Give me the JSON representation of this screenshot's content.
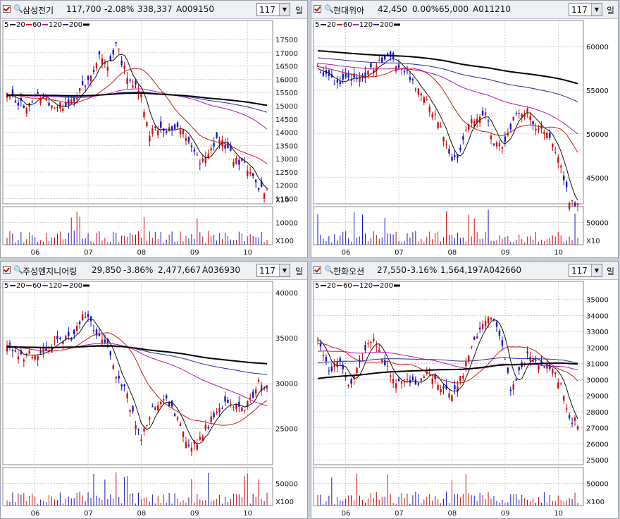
{
  "colors": {
    "up": "#cc1010",
    "down": "#1414c8",
    "ma5": "#111111",
    "ma20": "#d01818",
    "ma60": "#b21ab0",
    "ma120": "#2a2aa0",
    "ma200": "#000000",
    "grid": "#b0b0b0"
  },
  "interval_label": "일",
  "chart_data": [
    {
      "type": "candlestick",
      "name": "삼성전기",
      "price": "117,700",
      "change": "-2.08%",
      "volume": "338,337",
      "code": "A009150",
      "period": "117",
      "legend": [
        "5",
        "20",
        "60",
        "120",
        "200"
      ],
      "price_ticks": [
        "17500",
        "17000",
        "16500",
        "16000",
        "15500",
        "15000",
        "14500",
        "14000",
        "13500",
        "13000",
        "12500",
        "12000",
        "11500"
      ],
      "price_scale_label": "X10",
      "volume_ticks": [
        "10000"
      ],
      "volume_scale_label": "X100",
      "ylim": [
        11300,
        17900
      ],
      "vmax": 15000,
      "months": [
        "06",
        "07",
        "08",
        "09",
        "10"
      ],
      "anchors": [
        [
          0,
          15400
        ],
        [
          6,
          15000
        ],
        [
          12,
          15400
        ],
        [
          18,
          14900
        ],
        [
          24,
          15300
        ],
        [
          30,
          16000
        ],
        [
          33,
          16900
        ],
        [
          36,
          16500
        ],
        [
          39,
          17300
        ],
        [
          42,
          16400
        ],
        [
          45,
          15800
        ],
        [
          48,
          15400
        ],
        [
          51,
          14000
        ],
        [
          54,
          14200
        ],
        [
          57,
          14100
        ],
        [
          60,
          14100
        ],
        [
          63,
          14000
        ],
        [
          66,
          13500
        ],
        [
          69,
          12800
        ],
        [
          72,
          13100
        ],
        [
          75,
          13800
        ],
        [
          78,
          13500
        ],
        [
          81,
          13000
        ],
        [
          84,
          12900
        ],
        [
          87,
          12400
        ],
        [
          90,
          11900
        ],
        [
          93,
          11800
        ]
      ]
    },
    {
      "type": "candlestick",
      "name": "현대위아",
      "price": "42,450",
      "change": "0.00%",
      "volume": "65,000",
      "code": "A011210",
      "period": "117",
      "legend": [
        "5",
        "20",
        "60",
        "120",
        "200"
      ],
      "price_ticks": [
        "60000",
        "55000",
        "50000",
        "45000"
      ],
      "price_scale_label": "",
      "volume_ticks": [
        "50000"
      ],
      "volume_scale_label": "X10",
      "ylim": [
        42000,
        62000
      ],
      "vmax": 700,
      "months": [
        "06",
        "07",
        "08",
        "09",
        "10"
      ],
      "anchors": [
        [
          0,
          57500
        ],
        [
          6,
          56000
        ],
        [
          12,
          56000
        ],
        [
          18,
          57000
        ],
        [
          24,
          58500
        ],
        [
          27,
          58200
        ],
        [
          30,
          57500
        ],
        [
          33,
          56500
        ],
        [
          36,
          55000
        ],
        [
          39,
          54000
        ],
        [
          42,
          52000
        ],
        [
          45,
          50000
        ],
        [
          48,
          46500
        ],
        [
          51,
          48000
        ],
        [
          54,
          51000
        ],
        [
          57,
          52000
        ],
        [
          60,
          52000
        ],
        [
          63,
          49000
        ],
        [
          66,
          48500
        ],
        [
          69,
          51000
        ],
        [
          72,
          52500
        ],
        [
          75,
          52500
        ],
        [
          78,
          51000
        ],
        [
          81,
          50500
        ],
        [
          84,
          48500
        ],
        [
          87,
          46500
        ],
        [
          90,
          42500
        ]
      ]
    },
    {
      "type": "candlestick",
      "name": "주성엔지니어링",
      "price": "29,850",
      "change": "-3.86%",
      "volume": "2,477,667",
      "code": "A036930",
      "period": "117",
      "legend": [
        "5",
        "20",
        "60",
        "120",
        "200"
      ],
      "price_ticks": [
        "40000",
        "35000",
        "30000",
        "25000"
      ],
      "price_scale_label": "",
      "volume_ticks": [
        "50000"
      ],
      "volume_scale_label": "X100",
      "ylim": [
        21000,
        40300
      ],
      "vmax": 90000,
      "months": [
        "06",
        "07",
        "08",
        "09",
        "10"
      ],
      "anchors": [
        [
          0,
          34000
        ],
        [
          6,
          33000
        ],
        [
          12,
          33500
        ],
        [
          18,
          34500
        ],
        [
          24,
          35000
        ],
        [
          27,
          38000
        ],
        [
          30,
          36500
        ],
        [
          33,
          35000
        ],
        [
          36,
          34000
        ],
        [
          39,
          31000
        ],
        [
          42,
          29500
        ],
        [
          45,
          26500
        ],
        [
          48,
          24000
        ],
        [
          51,
          26500
        ],
        [
          54,
          28000
        ],
        [
          57,
          28500
        ],
        [
          60,
          26500
        ],
        [
          63,
          24500
        ],
        [
          66,
          22800
        ],
        [
          69,
          24000
        ],
        [
          72,
          25500
        ],
        [
          75,
          27000
        ],
        [
          78,
          27500
        ],
        [
          81,
          27500
        ],
        [
          84,
          27000
        ],
        [
          87,
          28000
        ],
        [
          90,
          30000
        ]
      ]
    },
    {
      "type": "candlestick",
      "name": "한화오션",
      "price": "27,550",
      "change": "-3.16%",
      "volume": "1,564,197",
      "code": "A042660",
      "period": "117",
      "legend": [
        "5",
        "20",
        "60",
        "120",
        "200"
      ],
      "price_ticks": [
        "35000",
        "34000",
        "33000",
        "32000",
        "31000",
        "30000",
        "29000",
        "28000",
        "27000",
        "26000",
        "25000"
      ],
      "price_scale_label": "",
      "volume_ticks": [
        "50000"
      ],
      "volume_scale_label": "X100",
      "ylim": [
        24700,
        35600
      ],
      "vmax": 60000,
      "months": [
        "06",
        "07",
        "08",
        "09",
        "10"
      ],
      "anchors": [
        [
          0,
          32500
        ],
        [
          4,
          30500
        ],
        [
          8,
          31000
        ],
        [
          12,
          29500
        ],
        [
          16,
          31500
        ],
        [
          20,
          32500
        ],
        [
          24,
          31000
        ],
        [
          28,
          30000
        ],
        [
          32,
          30000
        ],
        [
          36,
          29800
        ],
        [
          40,
          30500
        ],
        [
          44,
          29500
        ],
        [
          48,
          29000
        ],
        [
          52,
          30500
        ],
        [
          56,
          32500
        ],
        [
          60,
          33500
        ],
        [
          63,
          34000
        ],
        [
          66,
          32000
        ],
        [
          69,
          29500
        ],
        [
          72,
          30500
        ],
        [
          75,
          31500
        ],
        [
          78,
          31000
        ],
        [
          81,
          30800
        ],
        [
          84,
          30500
        ],
        [
          87,
          29800
        ],
        [
          90,
          27500
        ]
      ]
    }
  ]
}
